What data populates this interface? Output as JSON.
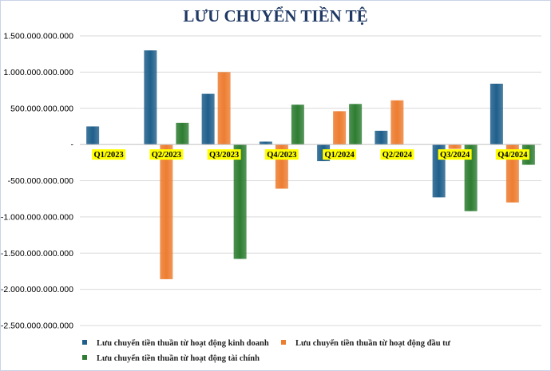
{
  "chart_data": {
    "type": "bar",
    "title": "LƯU CHUYỂN TIỀN TỆ",
    "categories": [
      "Q1/2023",
      "Q2/2023",
      "Q3/2023",
      "Q4/2023",
      "Q1/2024",
      "Q2/2024",
      "Q3/2024",
      "Q4/2024"
    ],
    "series": [
      {
        "name": "Lưu chuyển tiền thuần từ hoạt động kinh doanh",
        "color": "#1f5f8b",
        "values": [
          250000000000,
          1300000000000,
          700000000000,
          40000000000,
          -230000000000,
          190000000000,
          -730000000000,
          840000000000
        ]
      },
      {
        "name": "Lưu chuyển tiền thuần từ hoạt động đầu tư",
        "color": "#ed7d31",
        "values": [
          0,
          -1860000000000,
          1000000000000,
          -610000000000,
          460000000000,
          610000000000,
          -60000000000,
          -800000000000
        ]
      },
      {
        "name": "Lưu chuyển tiền thuần từ hoạt động tài chính",
        "color": "#2e7d32",
        "values": [
          0,
          300000000000,
          -1580000000000,
          550000000000,
          560000000000,
          0,
          -920000000000,
          -280000000000
        ]
      }
    ],
    "ylim": [
      -2500000000000,
      1500000000000
    ],
    "yticks": [
      1500000000000,
      1000000000000,
      500000000000,
      0,
      -500000000000,
      -1000000000000,
      -1500000000000,
      -2000000000000,
      -2500000000000
    ],
    "ytick_labels": [
      "1.500.000.000.000",
      "1.000.000.000.000",
      "500.000.000.000",
      "-",
      "-500.000.000.000",
      "-1.000.000.000.000",
      "-1.500.000.000.000",
      "-2.000.000.000.000",
      "-2.500.000.000.000"
    ],
    "grid": true,
    "legend_position": "bottom",
    "category_label_highlight": "#ffff00"
  }
}
